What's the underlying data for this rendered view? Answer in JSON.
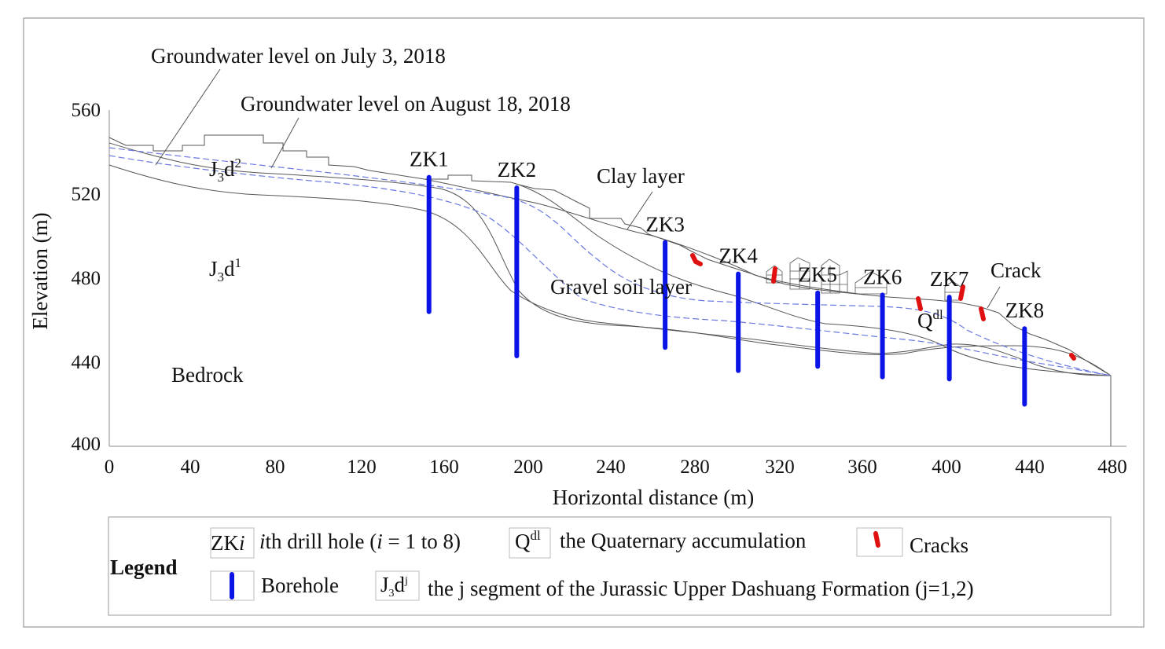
{
  "axes": {
    "xlabel": "Horizontal distance (m)",
    "ylabel": "Elevation (m)",
    "xlim": [
      0,
      480
    ],
    "ylim": [
      400,
      560
    ],
    "xticks": [
      "0",
      "40",
      "80",
      "120",
      "160",
      "200",
      "240",
      "280",
      "320",
      "360",
      "400",
      "440",
      "480"
    ],
    "yticks": [
      "400",
      "440",
      "480",
      "520",
      "560"
    ]
  },
  "annotations": {
    "gw_july": "Groundwater level on July 3, 2018",
    "gw_aug": "Groundwater level on August 18, 2018",
    "clay": "Clay layer",
    "gravel": "Gravel soil layer",
    "crack": "Crack",
    "bedrock": "Bedrock",
    "j3d2_main": "J",
    "j3d2_sub": "3",
    "j3d2_letter": "d",
    "j3d2_sup": "2",
    "j3d1_main": "J",
    "j3d1_sub": "3",
    "j3d1_letter": "d",
    "j3d1_sup": "1",
    "qdl_main": "Q",
    "qdl_sup": "dl"
  },
  "boreholes": [
    {
      "label": "ZK1",
      "x": 153,
      "top": 528,
      "bottom": 464
    },
    {
      "label": "ZK2",
      "x": 195,
      "top": 523,
      "bottom": 443
    },
    {
      "label": "ZK3",
      "x": 266,
      "top": 497,
      "bottom": 447
    },
    {
      "label": "ZK4",
      "x": 301,
      "top": 482,
      "bottom": 436
    },
    {
      "label": "ZK5",
      "x": 339,
      "top": 473,
      "bottom": 438
    },
    {
      "label": "ZK6",
      "x": 370,
      "top": 472,
      "bottom": 433
    },
    {
      "label": "ZK7",
      "x": 402,
      "top": 471,
      "bottom": 432
    },
    {
      "label": "ZK8",
      "x": 438,
      "top": 456,
      "bottom": 420
    }
  ],
  "legend": {
    "title": "Legend",
    "zki_sym": "ZK",
    "zki_sym_i": "i",
    "zki_desc_i": "i",
    "zki_desc": "th drill hole (",
    "zki_desc_i2": "i",
    "zki_desc_end": " = 1 to 8)",
    "qdl_sym": "Q",
    "qdl_sup": "dl",
    "qdl_desc": "the Quaternary accumulation",
    "cracks_desc": "Cracks",
    "borehole_desc": "Borehole",
    "jseg_sym": "J",
    "jseg_sub": "3",
    "jseg_letter": "d",
    "jseg_sup": "j",
    "jseg_desc": "the j segment of the Jurassic Upper Dashuang  Formation (j=1,2)"
  },
  "colors": {
    "borehole": "#0a14e6",
    "groundwater": "#6a78e0",
    "crack": "#e01010",
    "line": "#555555"
  }
}
